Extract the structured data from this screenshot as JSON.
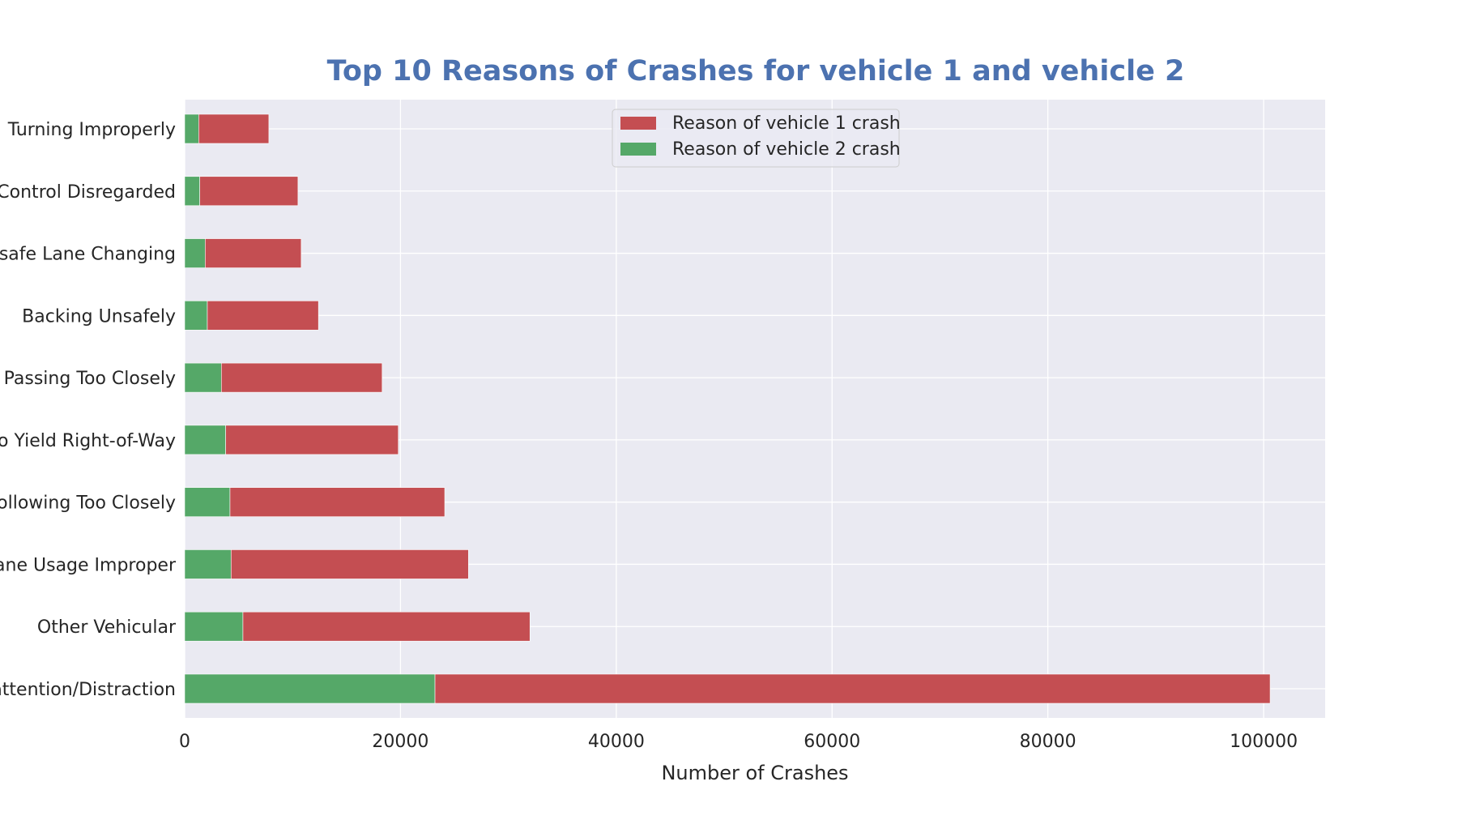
{
  "chart_data": {
    "type": "bar",
    "orientation": "horizontal",
    "stacked": true,
    "title": "Top 10 Reasons of Crashes for vehicle 1 and vehicle 2",
    "xlabel": "Number of Crashes",
    "ylabel": "",
    "categories": [
      "Driver Inattention/Distraction",
      "Other Vehicular",
      "Passing or Lane Usage Improper",
      "Following Too Closely",
      "Failure to Yield Right-of-Way",
      "Passing Too Closely",
      "Backing Unsafely",
      "Unsafe Lane Changing",
      "Traffic Control Disregarded",
      "Turning Improperly"
    ],
    "visible_category_labels": [
      "nattention/Distraction",
      "Other Vehicular",
      "Lane Usage Improper",
      "Following Too Closely",
      "to Yield Right-of-Way",
      "Passing Too Closely",
      "Backing Unsafely",
      "nsafe Lane Changing",
      "Control Disregarded",
      "Turning Improperly"
    ],
    "series": [
      {
        "name": "Reason of vehicle 2 crash",
        "color": "#55a868",
        "values": [
          23200,
          5400,
          4300,
          4200,
          3800,
          3400,
          2100,
          1900,
          1400,
          1300
        ]
      },
      {
        "name": "Reason of vehicle 1 crash",
        "color": "#c44e52",
        "values": [
          77400,
          26600,
          22000,
          19900,
          16000,
          14900,
          10300,
          8900,
          9100,
          6500
        ]
      }
    ],
    "xlim": [
      0,
      105700
    ],
    "xticks": [
      0,
      20000,
      40000,
      60000,
      80000,
      100000
    ],
    "xtick_labels": [
      "0",
      "20000",
      "40000",
      "60000",
      "80000",
      "100000"
    ],
    "grid": true,
    "legend": {
      "position": "upper-center",
      "entries": [
        "Reason of vehicle 1 crash",
        "Reason of vehicle 2 crash"
      ]
    },
    "colors": {
      "plot_background": "#eaeaf2",
      "grid": "#ffffff",
      "title": "#4c72b0",
      "text": "#262626"
    }
  }
}
